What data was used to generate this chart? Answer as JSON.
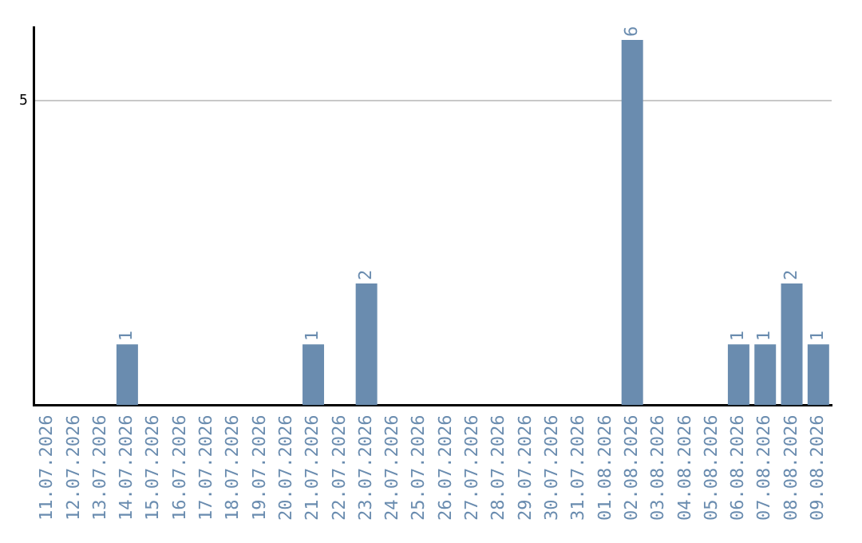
{
  "chart_data": {
    "type": "bar",
    "categories": [
      "11.07.2026",
      "12.07.2026",
      "13.07.2026",
      "14.07.2026",
      "15.07.2026",
      "16.07.2026",
      "17.07.2026",
      "18.07.2026",
      "19.07.2026",
      "20.07.2026",
      "21.07.2026",
      "22.07.2026",
      "23.07.2026",
      "24.07.2026",
      "25.07.2026",
      "26.07.2026",
      "27.07.2026",
      "28.07.2026",
      "29.07.2026",
      "30.07.2026",
      "31.07.2026",
      "01.08.2026",
      "02.08.2026",
      "03.08.2026",
      "04.08.2026",
      "05.08.2026",
      "06.08.2026",
      "07.08.2026",
      "08.08.2026",
      "09.08.2026"
    ],
    "values": [
      0,
      0,
      0,
      1,
      0,
      0,
      0,
      0,
      0,
      0,
      1,
      0,
      2,
      0,
      0,
      0,
      0,
      0,
      0,
      0,
      0,
      0,
      6,
      0,
      0,
      0,
      1,
      1,
      2,
      1
    ],
    "value_labels": [
      null,
      null,
      null,
      "1",
      null,
      null,
      null,
      null,
      null,
      null,
      "1",
      null,
      "2",
      null,
      null,
      null,
      null,
      null,
      null,
      null,
      null,
      null,
      "6",
      null,
      null,
      null,
      "1",
      "1",
      "2",
      "1"
    ],
    "color": "#6a8caf",
    "ylim": [
      0,
      6.2
    ],
    "yticks": [
      5
    ],
    "grid": "y",
    "legend": false
  }
}
